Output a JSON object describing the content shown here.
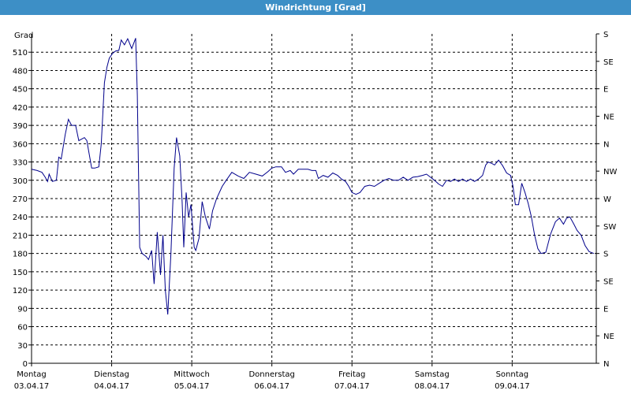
{
  "window": {
    "title": "Windrichtung [Grad]"
  },
  "chart_data": {
    "type": "line",
    "title": "Windrichtung [Grad]",
    "ylabel": "Grad",
    "ylim": [
      0,
      540
    ],
    "xlim": [
      0,
      7.05
    ],
    "grid": true,
    "y_ticks": [
      0,
      30,
      60,
      90,
      120,
      150,
      180,
      210,
      240,
      270,
      300,
      330,
      360,
      390,
      420,
      450,
      480,
      510
    ],
    "right_ticks": [
      {
        "value": 0,
        "label": "N"
      },
      {
        "value": 45,
        "label": "NE"
      },
      {
        "value": 90,
        "label": "E"
      },
      {
        "value": 135,
        "label": "SE"
      },
      {
        "value": 180,
        "label": "S"
      },
      {
        "value": 225,
        "label": "SW"
      },
      {
        "value": 270,
        "label": "W"
      },
      {
        "value": 315,
        "label": "NW"
      },
      {
        "value": 360,
        "label": "N"
      },
      {
        "value": 405,
        "label": "NE"
      },
      {
        "value": 450,
        "label": "E"
      },
      {
        "value": 495,
        "label": "SE"
      },
      {
        "value": 540,
        "label": "S"
      }
    ],
    "x_ticks": [
      {
        "value": 0,
        "day": "Montag",
        "date": "03.04.17"
      },
      {
        "value": 1,
        "day": "Dienstag",
        "date": "04.04.17"
      },
      {
        "value": 2,
        "day": "Mittwoch",
        "date": "05.04.17"
      },
      {
        "value": 3,
        "day": "Donnerstag",
        "date": "06.04.17"
      },
      {
        "value": 4,
        "day": "Freitag",
        "date": "07.04.17"
      },
      {
        "value": 5,
        "day": "Samstag",
        "date": "08.04.17"
      },
      {
        "value": 6,
        "day": "Sonntag",
        "date": "09.04.17"
      }
    ],
    "series": [
      {
        "color": "#00008b",
        "points": [
          [
            0.0,
            318
          ],
          [
            0.07,
            316
          ],
          [
            0.13,
            313
          ],
          [
            0.17,
            305
          ],
          [
            0.2,
            298
          ],
          [
            0.22,
            310
          ],
          [
            0.26,
            298
          ],
          [
            0.31,
            300
          ],
          [
            0.34,
            338
          ],
          [
            0.37,
            335
          ],
          [
            0.42,
            375
          ],
          [
            0.46,
            400
          ],
          [
            0.5,
            390
          ],
          [
            0.55,
            390
          ],
          [
            0.59,
            365
          ],
          [
            0.66,
            370
          ],
          [
            0.69,
            365
          ],
          [
            0.75,
            320
          ],
          [
            0.79,
            320
          ],
          [
            0.84,
            322
          ],
          [
            0.87,
            360
          ],
          [
            0.91,
            460
          ],
          [
            0.94,
            485
          ],
          [
            0.97,
            500
          ],
          [
            1.01,
            508
          ],
          [
            1.05,
            512
          ],
          [
            1.09,
            513
          ],
          [
            1.12,
            530
          ],
          [
            1.16,
            522
          ],
          [
            1.2,
            532
          ],
          [
            1.25,
            516
          ],
          [
            1.3,
            533
          ],
          [
            1.32,
            440
          ],
          [
            1.35,
            190
          ],
          [
            1.38,
            180
          ],
          [
            1.43,
            175
          ],
          [
            1.46,
            170
          ],
          [
            1.5,
            185
          ],
          [
            1.53,
            130
          ],
          [
            1.57,
            215
          ],
          [
            1.61,
            145
          ],
          [
            1.64,
            210
          ],
          [
            1.67,
            120
          ],
          [
            1.7,
            80
          ],
          [
            1.74,
            180
          ],
          [
            1.78,
            320
          ],
          [
            1.81,
            370
          ],
          [
            1.85,
            340
          ],
          [
            1.88,
            265
          ],
          [
            1.9,
            190
          ],
          [
            1.93,
            280
          ],
          [
            1.96,
            240
          ],
          [
            1.99,
            260
          ],
          [
            2.03,
            190
          ],
          [
            2.05,
            185
          ],
          [
            2.09,
            205
          ],
          [
            2.13,
            265
          ],
          [
            2.17,
            240
          ],
          [
            2.22,
            220
          ],
          [
            2.26,
            250
          ],
          [
            2.31,
            270
          ],
          [
            2.38,
            290
          ],
          [
            2.43,
            300
          ],
          [
            2.5,
            313
          ],
          [
            2.58,
            307
          ],
          [
            2.65,
            303
          ],
          [
            2.72,
            313
          ],
          [
            2.8,
            310
          ],
          [
            2.88,
            307
          ],
          [
            2.95,
            314
          ],
          [
            3.0,
            320
          ],
          [
            3.05,
            322
          ],
          [
            3.12,
            322
          ],
          [
            3.17,
            313
          ],
          [
            3.23,
            316
          ],
          [
            3.27,
            310
          ],
          [
            3.33,
            318
          ],
          [
            3.38,
            318
          ],
          [
            3.45,
            318
          ],
          [
            3.5,
            316
          ],
          [
            3.55,
            316
          ],
          [
            3.58,
            303
          ],
          [
            3.64,
            308
          ],
          [
            3.7,
            305
          ],
          [
            3.76,
            312
          ],
          [
            3.82,
            308
          ],
          [
            3.87,
            302
          ],
          [
            3.92,
            298
          ],
          [
            3.96,
            290
          ],
          [
            4.0,
            280
          ],
          [
            4.05,
            277
          ],
          [
            4.1,
            280
          ],
          [
            4.16,
            290
          ],
          [
            4.22,
            292
          ],
          [
            4.28,
            290
          ],
          [
            4.34,
            295
          ],
          [
            4.4,
            300
          ],
          [
            4.46,
            303
          ],
          [
            4.52,
            300
          ],
          [
            4.58,
            300
          ],
          [
            4.64,
            305
          ],
          [
            4.7,
            300
          ],
          [
            4.76,
            305
          ],
          [
            4.82,
            306
          ],
          [
            4.88,
            308
          ],
          [
            4.93,
            310
          ],
          [
            4.98,
            305
          ],
          [
            5.03,
            300
          ],
          [
            5.08,
            294
          ],
          [
            5.13,
            290
          ],
          [
            5.18,
            300
          ],
          [
            5.23,
            298
          ],
          [
            5.28,
            302
          ],
          [
            5.33,
            298
          ],
          [
            5.38,
            302
          ],
          [
            5.43,
            298
          ],
          [
            5.48,
            302
          ],
          [
            5.53,
            298
          ],
          [
            5.58,
            302
          ],
          [
            5.63,
            308
          ],
          [
            5.67,
            325
          ],
          [
            5.7,
            330
          ],
          [
            5.74,
            328
          ],
          [
            5.78,
            325
          ],
          [
            5.83,
            333
          ],
          [
            5.88,
            324
          ],
          [
            5.93,
            312
          ],
          [
            5.98,
            308
          ],
          [
            6.01,
            290
          ],
          [
            6.04,
            260
          ],
          [
            6.08,
            260
          ],
          [
            6.12,
            295
          ],
          [
            6.16,
            280
          ],
          [
            6.2,
            262
          ],
          [
            6.24,
            240
          ],
          [
            6.28,
            210
          ],
          [
            6.32,
            188
          ],
          [
            6.36,
            180
          ],
          [
            6.42,
            182
          ],
          [
            6.48,
            212
          ],
          [
            6.54,
            232
          ],
          [
            6.59,
            238
          ],
          [
            6.64,
            228
          ],
          [
            6.68,
            238
          ],
          [
            6.72,
            240
          ],
          [
            6.77,
            228
          ],
          [
            6.81,
            218
          ],
          [
            6.86,
            210
          ],
          [
            6.91,
            193
          ],
          [
            6.96,
            183
          ],
          [
            7.02,
            180
          ]
        ]
      }
    ]
  }
}
